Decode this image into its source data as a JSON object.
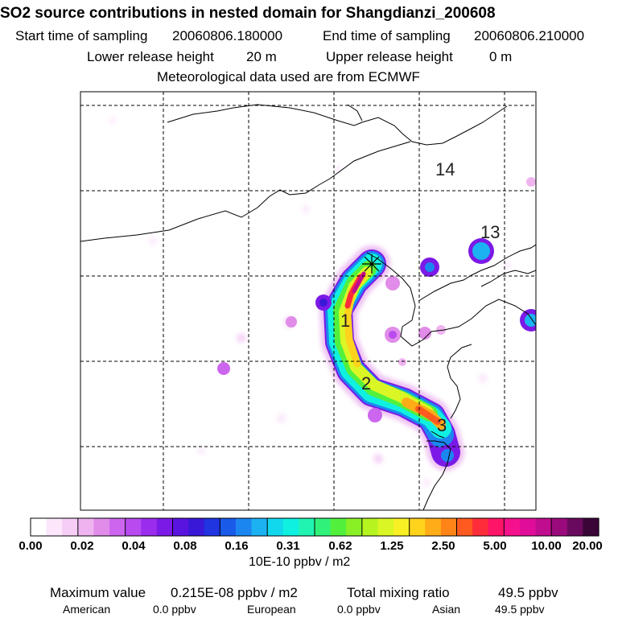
{
  "header": {
    "title": "SO2 source contributions in nested domain for Shangdianzi_200608",
    "start_label": "Start time of sampling",
    "start_value": "20060806.180000",
    "end_label": "End time of sampling",
    "end_value": "20060806.210000",
    "lower_label": "Lower release height",
    "lower_value": "20 m",
    "upper_label": "Upper release height",
    "upper_value": "0 m",
    "met": "Meteorological data used are from ECMWF"
  },
  "map": {
    "region_labels": [
      "14",
      "13",
      "1",
      "2",
      "3"
    ]
  },
  "colorbar": {
    "ticks": [
      "0.00",
      "0.02",
      "0.04",
      "0.08",
      "0.16",
      "0.31",
      "0.62",
      "1.25",
      "2.50",
      "5.00",
      "10.00",
      "20.00"
    ],
    "unit": "10E-10 ppbv / m2",
    "colors": [
      "#ffffff",
      "#fbe6fb",
      "#f5cdf5",
      "#efb4f0",
      "#e08ce8",
      "#cc66ee",
      "#b84af0",
      "#9a2cee",
      "#7b1ae6",
      "#5a14e0",
      "#3a18d8",
      "#2034e0",
      "#1a5ae8",
      "#1c86f0",
      "#1cb2f2",
      "#12d8ee",
      "#10f0e0",
      "#20f4b0",
      "#30f27a",
      "#52f03c",
      "#8af026",
      "#b6f420",
      "#daf624",
      "#f8f024",
      "#ffd21c",
      "#ffac18",
      "#ff8418",
      "#ff5a20",
      "#ff2c3a",
      "#ff1468",
      "#f5108c",
      "#e00c9a",
      "#c00c8e",
      "#9a0a7c",
      "#6a0a5e",
      "#3a0638"
    ]
  },
  "footer": {
    "max_label": "Maximum value",
    "max_value": "0.215E-08 ppbv / m2",
    "total_label": "Total mixing ratio",
    "total_value": "49.5 ppbv",
    "american_label": "American",
    "american_value": "0.0 ppbv",
    "european_label": "European",
    "european_value": "0.0 ppbv",
    "asian_label": "Asian",
    "asian_value": "49.5 ppbv"
  }
}
